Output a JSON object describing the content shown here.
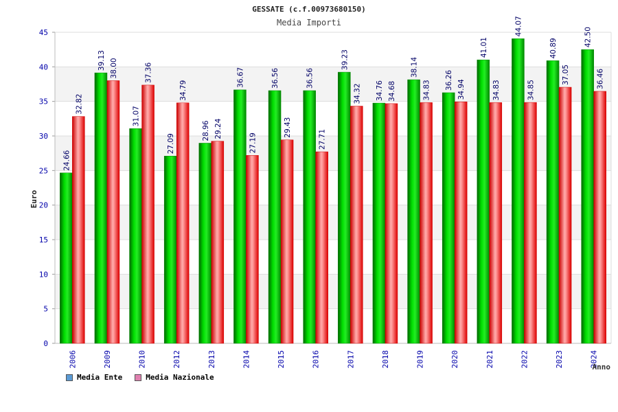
{
  "chart_data": {
    "type": "bar",
    "title": "GESSATE (c.f.00973680150)",
    "subtitle": "Media Importi",
    "xlabel": "Anno",
    "ylabel": "Euro",
    "ylim": [
      0,
      45
    ],
    "yticks": [
      0,
      5,
      10,
      15,
      20,
      25,
      30,
      35,
      40,
      45
    ],
    "categories": [
      "2006",
      "2009",
      "2010",
      "2012",
      "2013",
      "2014",
      "2015",
      "2016",
      "2017",
      "2018",
      "2019",
      "2020",
      "2021",
      "2022",
      "2023",
      "2024"
    ],
    "series": [
      {
        "name": "Media Ente",
        "color": "#00cc00",
        "values": [
          24.66,
          39.13,
          31.07,
          27.09,
          28.96,
          36.67,
          36.56,
          36.56,
          39.23,
          34.76,
          38.14,
          36.26,
          41.01,
          44.07,
          40.89,
          42.5
        ],
        "labels": [
          "24.66",
          "39.13",
          "31.07",
          "27.09",
          "28.96",
          "36.67",
          "36.56",
          "36.56",
          "39.23",
          "34.76",
          "38.14",
          "36.26",
          "41.01",
          "44.07",
          "40.89",
          "42.50"
        ]
      },
      {
        "name": "Media Nazionale",
        "color": "#e8202a",
        "values": [
          32.82,
          38.0,
          37.36,
          34.79,
          29.24,
          27.19,
          29.43,
          27.71,
          34.32,
          34.68,
          34.83,
          34.94,
          34.83,
          34.85,
          37.05,
          36.46
        ],
        "labels": [
          "32.82",
          "38.00",
          "37.36",
          "34.79",
          "29.24",
          "27.19",
          "29.43",
          "27.71",
          "34.32",
          "34.68",
          "34.83",
          "34.94",
          "34.83",
          "34.85",
          "37.05",
          "36.46"
        ]
      }
    ],
    "grid": true,
    "legend_position": "bottom-left"
  },
  "legend": {
    "items": [
      {
        "label": "Media Ente",
        "color": "#5b9bd5"
      },
      {
        "label": "Media Nazionale",
        "color": "#e080b0"
      }
    ]
  }
}
